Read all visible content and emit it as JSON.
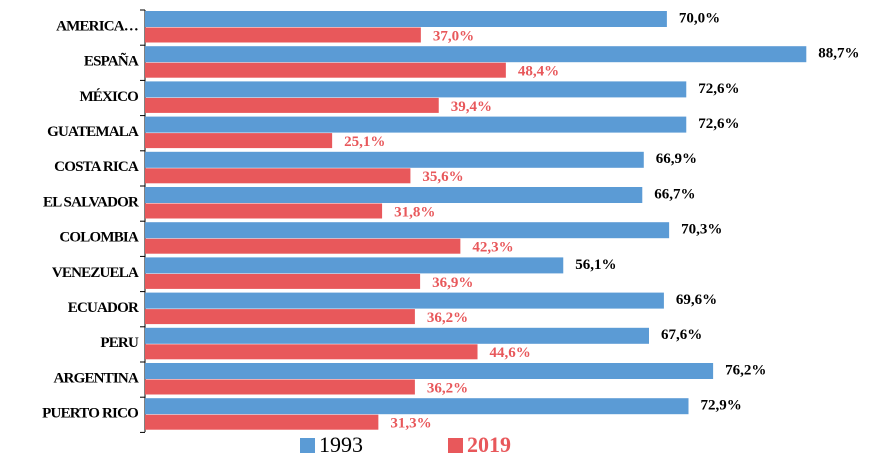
{
  "chart_data": {
    "type": "hbar",
    "categories": [
      "AMERICA…",
      "ESPAÑA",
      "MÉXICO",
      "GUATEMALA",
      "COSTA RICA",
      "EL SALVADOR",
      "COLOMBIA",
      "VENEZUELA",
      "ECUADOR",
      "PERU",
      "ARGENTINA",
      "PUERTO RICO"
    ],
    "series": [
      {
        "name": "1993",
        "color": "#5b9bd5",
        "values": [
          70.0,
          88.7,
          72.6,
          72.6,
          66.9,
          66.7,
          70.3,
          56.1,
          69.6,
          67.6,
          76.2,
          72.9
        ],
        "value_labels": [
          "70,0%",
          "88,7%",
          "72,6%",
          "72,6%",
          "66,9%",
          "66,7%",
          "70,3%",
          "56,1%",
          "69,6%",
          "67,6%",
          "76,2%",
          "72,9%"
        ]
      },
      {
        "name": "2019",
        "color": "#e8585b",
        "values": [
          37.0,
          48.4,
          39.4,
          25.1,
          35.6,
          31.8,
          42.3,
          36.9,
          36.2,
          44.6,
          36.2,
          31.3
        ],
        "value_labels": [
          "37,0%",
          "48,4%",
          "39,4%",
          "25,1%",
          "35,6%",
          "31,8%",
          "42,3%",
          "36,9%",
          "36,2%",
          "44,6%",
          "36,2%",
          "31,3%"
        ]
      }
    ],
    "xlim": [
      0,
      90
    ],
    "legend": "bottom"
  }
}
